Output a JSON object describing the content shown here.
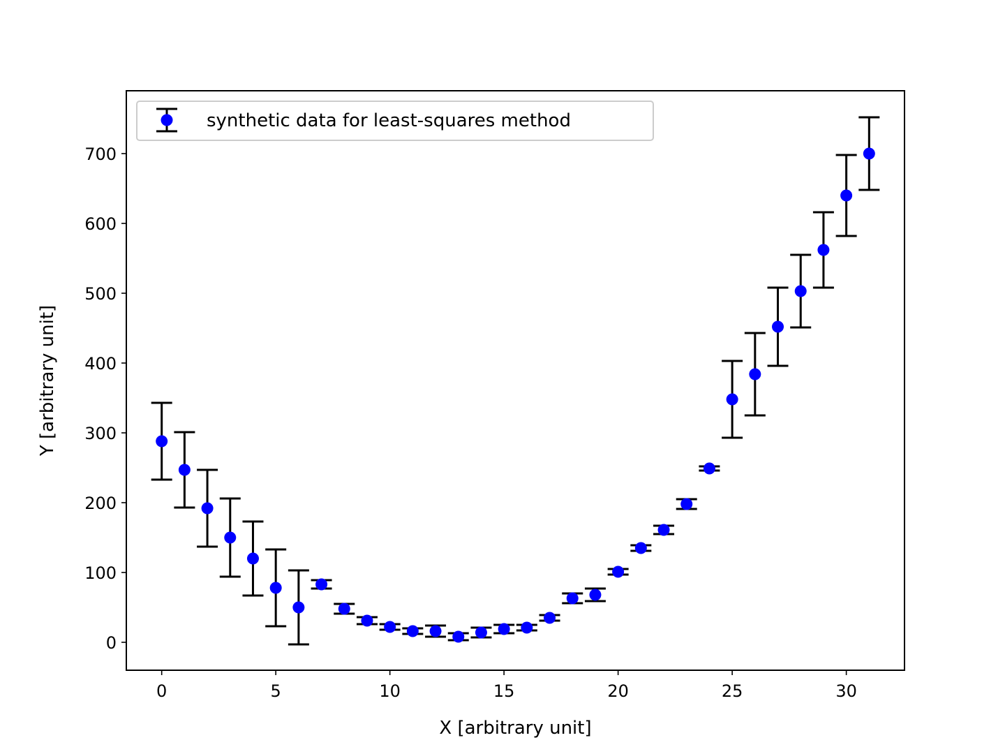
{
  "chart_data": {
    "type": "scatter",
    "title": "",
    "xlabel": "X [arbitrary unit]",
    "ylabel": "Y [arbitrary unit]",
    "xlim": [
      -1.55,
      32.55
    ],
    "ylim": [
      -40,
      790
    ],
    "xticks": [
      0,
      5,
      10,
      15,
      20,
      25,
      30
    ],
    "yticks": [
      0,
      100,
      200,
      300,
      400,
      500,
      600,
      700
    ],
    "grid": false,
    "legend": {
      "location": "upper left",
      "label": "synthetic data for least-squares method"
    },
    "series": [
      {
        "name": "synthetic data for least-squares method",
        "marker": "circle",
        "color": "#0000ff",
        "errorbar_color": "#000000",
        "x": [
          0,
          1,
          2,
          3,
          4,
          5,
          6,
          7,
          8,
          9,
          10,
          11,
          12,
          13,
          14,
          15,
          16,
          17,
          18,
          19,
          20,
          21,
          22,
          23,
          24,
          25,
          26,
          27,
          28,
          29,
          30,
          31
        ],
        "y": [
          288,
          247,
          192,
          150,
          120,
          78,
          50,
          83,
          48,
          31,
          22,
          16,
          16,
          8,
          14,
          19,
          21,
          35,
          63,
          68,
          101,
          135,
          161,
          198,
          249,
          348,
          384,
          452,
          503,
          562,
          640,
          700
        ],
        "yerr": [
          55,
          54,
          55,
          56,
          53,
          55,
          53,
          6,
          7,
          5,
          4,
          4,
          8,
          5,
          7,
          6,
          4,
          4,
          7,
          9,
          4,
          4,
          6,
          7,
          3,
          55,
          59,
          56,
          52,
          54,
          58,
          52
        ]
      }
    ]
  }
}
